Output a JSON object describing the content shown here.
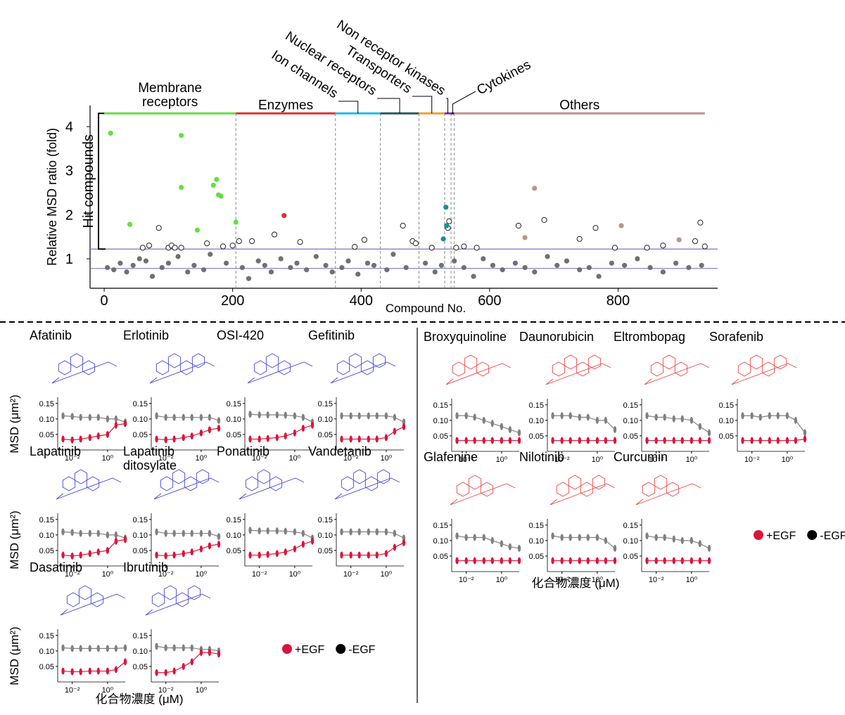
{
  "chart_data": [
    {
      "type": "scatter",
      "xlabel": "Compound No.",
      "ylabel": "Relative MSD ratio (fold)",
      "annotation": "Hit compounds",
      "xlim": [
        -22,
        955
      ],
      "ylim": [
        0.33,
        4.48
      ],
      "xticks": [
        0,
        200,
        400,
        600,
        800
      ],
      "yticks": [
        1,
        2,
        3,
        4
      ],
      "hlines": [
        1.22,
        0.78
      ],
      "hline_color": "#7777cc",
      "bracket": [
        1.22,
        4.3
      ],
      "groups": [
        {
          "name": "Membrane receptors",
          "start": 0,
          "end": 205,
          "color": "#66dd44"
        },
        {
          "name": "Enzymes",
          "start": 205,
          "end": 360,
          "color": "#e03030"
        },
        {
          "name": "Ion channels",
          "start": 360,
          "end": 430,
          "color": "#22bbee"
        },
        {
          "name": "Nuclear receptors",
          "start": 430,
          "end": 490,
          "color": "#2b5a60"
        },
        {
          "name": "Transporters",
          "start": 490,
          "end": 530,
          "color": "#f0a030"
        },
        {
          "name": "Non receptor kinases",
          "start": 530,
          "end": 540,
          "color": "#7040c0"
        },
        {
          "name": "Cytokines",
          "start": 540,
          "end": 545,
          "color": "#333333"
        },
        {
          "name": "Others",
          "start": 545,
          "end": 935,
          "color": "#c09090"
        }
      ],
      "series": [
        {
          "color": "#707070",
          "fill": true,
          "x": [
            5,
            15,
            25,
            35,
            45,
            55,
            65,
            75,
            90,
            100,
            115,
            130,
            140,
            155,
            165,
            190,
            215,
            225,
            240,
            250,
            260,
            275,
            290,
            300,
            315,
            330,
            345,
            355,
            370,
            380,
            395,
            410,
            420,
            440,
            450,
            470,
            500,
            515,
            525,
            545,
            560,
            575,
            590,
            605,
            620,
            640,
            655,
            670,
            690,
            705,
            720,
            740,
            755,
            770,
            790,
            810,
            830,
            850,
            870,
            890,
            910,
            930
          ],
          "values": [
            0.8,
            0.75,
            0.9,
            0.7,
            0.85,
            1.0,
            0.95,
            0.6,
            0.8,
            0.9,
            1.05,
            0.7,
            0.85,
            0.75,
            1.1,
            0.9,
            0.8,
            0.55,
            0.95,
            0.85,
            0.7,
            1.0,
            0.8,
            0.9,
            0.75,
            1.05,
            0.85,
            0.7,
            0.8,
            0.95,
            0.65,
            0.9,
            0.85,
            0.75,
            1.1,
            0.8,
            0.9,
            0.7,
            0.85,
            0.95,
            0.8,
            0.6,
            1.0,
            0.85,
            0.75,
            0.9,
            0.8,
            0.7,
            1.05,
            0.85,
            0.95,
            0.75,
            0.8,
            0.6,
            0.9,
            0.85,
            1.0,
            0.8,
            0.7,
            0.9,
            0.8,
            0.85
          ]
        },
        {
          "color": "#222222",
          "fill": false,
          "x": [
            60,
            70,
            85,
            100,
            105,
            110,
            120,
            160,
            185,
            200,
            210,
            230,
            265,
            305,
            390,
            405,
            465,
            480,
            485,
            510,
            535,
            537,
            548,
            560,
            580,
            645,
            685,
            740,
            765,
            795,
            845,
            870,
            920,
            928,
            935
          ],
          "values": [
            1.25,
            1.3,
            1.7,
            1.25,
            1.3,
            1.25,
            1.25,
            1.35,
            1.28,
            1.3,
            1.4,
            1.4,
            1.55,
            1.38,
            1.27,
            1.43,
            1.75,
            1.4,
            1.35,
            1.25,
            1.7,
            1.85,
            1.25,
            1.28,
            1.25,
            1.75,
            1.88,
            1.45,
            1.7,
            1.25,
            1.25,
            1.3,
            1.4,
            1.82,
            1.28
          ]
        },
        {
          "color": "#66dd44",
          "fill": true,
          "x": [
            10,
            40,
            120,
            120,
            145,
            170,
            175,
            178,
            182,
            205
          ],
          "values": [
            3.85,
            1.78,
            3.8,
            2.62,
            1.65,
            2.67,
            2.8,
            2.45,
            2.42,
            1.83
          ]
        },
        {
          "color": "#e03030",
          "fill": true,
          "x": [
            280
          ],
          "values": [
            1.98
          ]
        },
        {
          "color": "#1a9090",
          "fill": true,
          "x": [
            528,
            532,
            533
          ],
          "values": [
            1.45,
            2.17,
            1.75
          ]
        },
        {
          "color": "#c09090",
          "fill": true,
          "x": [
            655,
            670,
            805,
            895
          ],
          "values": [
            1.48,
            2.6,
            1.75,
            1.43
          ]
        }
      ]
    },
    {
      "type": "line",
      "xlabel": "化合物濃度 (μM)",
      "ylabel": "MSD (μm²)",
      "structure_color": "#4444dd",
      "x": [
        0.003,
        0.01,
        0.03,
        0.1,
        0.3,
        1,
        3,
        10
      ],
      "xlim": [
        0.0015,
        10
      ],
      "xticks": [
        {
          "value": 0.01,
          "label": "10⁻²"
        },
        {
          "value": 1,
          "label": "10⁰"
        }
      ],
      "ylim": [
        0.0,
        0.17
      ],
      "yticks": [
        {
          "value": 0.05,
          "label": "0.05"
        },
        {
          "value": 0.1,
          "label": "0.10"
        },
        {
          "value": 0.15,
          "label": "0.15"
        }
      ],
      "series": [
        {
          "name": "+EGF",
          "color": "#dc143c",
          "legend_color": "#dc143c"
        },
        {
          "name": "-EGF",
          "color": "#808080",
          "legend_color": "#000000"
        }
      ],
      "panels": [
        {
          "title": "Afatinib",
          "values": [
            [
              0.035,
              0.032,
              0.035,
              0.04,
              0.045,
              0.05,
              0.08,
              0.085
            ],
            [
              0.11,
              0.108,
              0.105,
              0.105,
              0.105,
              0.1,
              0.1,
              0.09
            ]
          ]
        },
        {
          "title": "Erlotinib",
          "values": [
            [
              0.035,
              0.033,
              0.035,
              0.04,
              0.045,
              0.055,
              0.065,
              0.07
            ],
            [
              0.11,
              0.105,
              0.105,
              0.105,
              0.105,
              0.105,
              0.105,
              0.095
            ]
          ]
        },
        {
          "title": "OSI-420",
          "values": [
            [
              0.035,
              0.035,
              0.037,
              0.04,
              0.045,
              0.055,
              0.07,
              0.08
            ],
            [
              0.115,
              0.113,
              0.113,
              0.113,
              0.112,
              0.11,
              0.105,
              0.09
            ]
          ]
        },
        {
          "title": "Gefitinib",
          "values": [
            [
              0.035,
              0.035,
              0.035,
              0.035,
              0.035,
              0.04,
              0.06,
              0.075
            ],
            [
              0.11,
              0.11,
              0.11,
              0.11,
              0.11,
              0.11,
              0.105,
              0.09
            ]
          ]
        },
        {
          "title": "Lapatinib",
          "values": [
            [
              0.035,
              0.032,
              0.035,
              0.04,
              0.045,
              0.05,
              0.08,
              0.085
            ],
            [
              0.11,
              0.108,
              0.105,
              0.105,
              0.105,
              0.1,
              0.1,
              0.09
            ]
          ]
        },
        {
          "title": "Lapatinib ditosylate",
          "values": [
            [
              0.035,
              0.033,
              0.035,
              0.04,
              0.045,
              0.055,
              0.065,
              0.07
            ],
            [
              0.11,
              0.105,
              0.105,
              0.105,
              0.105,
              0.105,
              0.105,
              0.095
            ]
          ]
        },
        {
          "title": "Ponatinib",
          "values": [
            [
              0.035,
              0.035,
              0.037,
              0.04,
              0.045,
              0.055,
              0.07,
              0.08
            ],
            [
              0.115,
              0.113,
              0.113,
              0.113,
              0.112,
              0.11,
              0.105,
              0.09
            ]
          ]
        },
        {
          "title": "Vandetanib",
          "values": [
            [
              0.035,
              0.035,
              0.035,
              0.035,
              0.035,
              0.04,
              0.06,
              0.075
            ],
            [
              0.11,
              0.11,
              0.11,
              0.11,
              0.11,
              0.11,
              0.105,
              0.09
            ]
          ]
        },
        {
          "title": "Dasatinib",
          "values": [
            [
              0.035,
              0.033,
              0.033,
              0.035,
              0.035,
              0.035,
              0.04,
              0.065
            ],
            [
              0.11,
              0.108,
              0.108,
              0.108,
              0.108,
              0.108,
              0.108,
              0.11
            ]
          ]
        },
        {
          "title": "Ibrutinib",
          "values": [
            [
              0.03,
              0.03,
              0.035,
              0.05,
              0.065,
              0.095,
              0.095,
              0.09
            ],
            [
              0.115,
              0.11,
              0.11,
              0.11,
              0.11,
              0.105,
              0.105,
              0.1
            ]
          ]
        }
      ]
    },
    {
      "type": "line",
      "xlabel": "化合物濃度 (μM)",
      "structure_color": "#ee4444",
      "x": [
        0.003,
        0.01,
        0.03,
        0.1,
        0.3,
        1,
        3,
        10
      ],
      "xlim": [
        0.0015,
        10
      ],
      "xticks": [
        {
          "value": 0.01,
          "label": "10⁻²"
        },
        {
          "value": 1,
          "label": "10⁰"
        }
      ],
      "ylim": [
        0.0,
        0.17
      ],
      "yticks": [
        {
          "value": 0.05,
          "label": "0.05"
        },
        {
          "value": 0.1,
          "label": "0.10"
        },
        {
          "value": 0.15,
          "label": "0.15"
        }
      ],
      "series": [
        {
          "name": "+EGF",
          "color": "#dc143c",
          "legend_color": "#dc143c"
        },
        {
          "name": "-EGF",
          "color": "#808080",
          "legend_color": "#000000"
        }
      ],
      "panels": [
        {
          "title": "Broxyquinoline",
          "values": [
            [
              0.035,
              0.035,
              0.035,
              0.035,
              0.035,
              0.035,
              0.035,
              0.035
            ],
            [
              0.115,
              0.115,
              0.11,
              0.1,
              0.09,
              0.08,
              0.07,
              0.06
            ]
          ]
        },
        {
          "title": "Daunorubicin",
          "values": [
            [
              0.035,
              0.035,
              0.035,
              0.035,
              0.035,
              0.035,
              0.035,
              0.035
            ],
            [
              0.115,
              0.115,
              0.115,
              0.11,
              0.11,
              0.1,
              0.1,
              0.07
            ]
          ]
        },
        {
          "title": "Eltrombopag",
          "values": [
            [
              0.035,
              0.035,
              0.035,
              0.035,
              0.035,
              0.035,
              0.035,
              0.035
            ],
            [
              0.115,
              0.11,
              0.11,
              0.105,
              0.105,
              0.1,
              0.08,
              0.06
            ]
          ]
        },
        {
          "title": "Sorafenib",
          "values": [
            [
              0.035,
              0.035,
              0.035,
              0.035,
              0.035,
              0.035,
              0.035,
              0.04
            ],
            [
              0.115,
              0.115,
              0.11,
              0.115,
              0.115,
              0.115,
              0.1,
              0.06
            ]
          ]
        },
        {
          "title": "Glafenine",
          "values": [
            [
              0.035,
              0.035,
              0.035,
              0.035,
              0.035,
              0.035,
              0.035,
              0.035
            ],
            [
              0.115,
              0.11,
              0.11,
              0.11,
              0.1,
              0.09,
              0.08,
              0.075
            ]
          ]
        },
        {
          "title": "Nilotinib",
          "values": [
            [
              0.035,
              0.035,
              0.035,
              0.035,
              0.035,
              0.035,
              0.035,
              0.035
            ],
            [
              0.115,
              0.11,
              0.11,
              0.11,
              0.11,
              0.11,
              0.1,
              0.075
            ]
          ]
        },
        {
          "title": "Curcumin",
          "values": [
            [
              0.035,
              0.035,
              0.035,
              0.035,
              0.035,
              0.035,
              0.035,
              0.035
            ],
            [
              0.115,
              0.11,
              0.11,
              0.105,
              0.1,
              0.1,
              0.09,
              0.075
            ]
          ]
        }
      ]
    }
  ]
}
